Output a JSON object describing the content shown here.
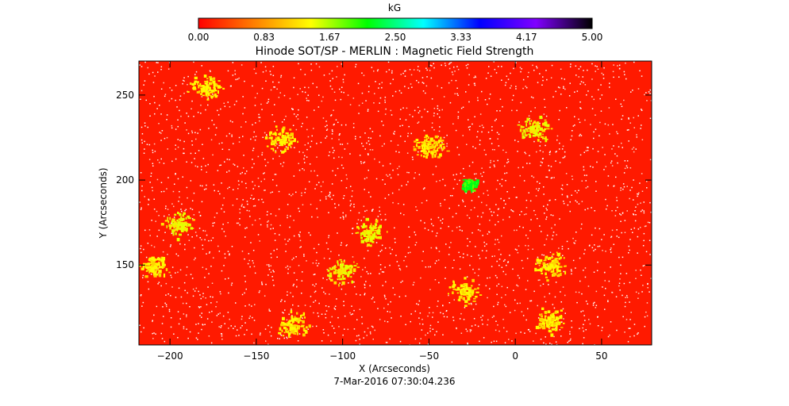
{
  "colorbar": {
    "unit": "kG",
    "ticks": [
      "0.00",
      "0.83",
      "1.67",
      "2.50",
      "3.33",
      "4.17",
      "5.00"
    ],
    "range": [
      0,
      5
    ],
    "colormap": [
      "#ff0000",
      "#ff8000",
      "#ffff00",
      "#00ff00",
      "#00ffff",
      "#0000ff",
      "#8000ff",
      "#000000"
    ]
  },
  "chart_data": {
    "type": "heatmap",
    "title": "Hinode SOT/SP - MERLIN : Magnetic Field Strength",
    "subtitle": "7-Mar-2016 07:30:04.236",
    "xlabel": "X (Arcseconds)",
    "ylabel": "Y (Arcseconds)",
    "xlim": [
      -218,
      79
    ],
    "ylim": [
      103,
      270
    ],
    "x_ticks": [
      -200,
      -150,
      -100,
      -50,
      0,
      50
    ],
    "y_ticks": [
      150,
      200,
      250
    ],
    "x_tick_labels": [
      "−200",
      "−150",
      "−100",
      "−50",
      "0",
      "50"
    ],
    "y_tick_labels": [
      "150",
      "200",
      "250"
    ],
    "value_unit": "kG",
    "background_field_kG": 0.0,
    "strong_field_regions_kG": [
      {
        "x": -27,
        "y": 198,
        "value": 2.2
      },
      {
        "x": -195,
        "y": 175,
        "value": 1.5
      },
      {
        "x": -180,
        "y": 255,
        "value": 1.4
      },
      {
        "x": -135,
        "y": 225,
        "value": 1.4
      },
      {
        "x": -85,
        "y": 170,
        "value": 1.5
      },
      {
        "x": -100,
        "y": 147,
        "value": 1.5
      },
      {
        "x": -50,
        "y": 220,
        "value": 1.4
      },
      {
        "x": 10,
        "y": 230,
        "value": 1.5
      },
      {
        "x": 20,
        "y": 150,
        "value": 1.4
      },
      {
        "x": -30,
        "y": 135,
        "value": 1.4
      },
      {
        "x": -130,
        "y": 115,
        "value": 1.4
      },
      {
        "x": 20,
        "y": 118,
        "value": 1.4
      },
      {
        "x": -210,
        "y": 150,
        "value": 1.4
      }
    ]
  }
}
